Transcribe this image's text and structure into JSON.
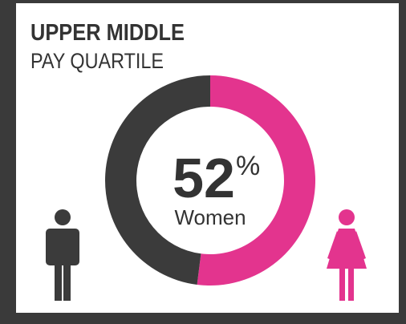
{
  "chart_data": {
    "type": "donut",
    "title": "UPPER MIDDLE",
    "subtitle": "PAY QUARTILE",
    "categories": [
      "Women",
      null
    ],
    "values": [
      52,
      48
    ],
    "unit": "%",
    "colors": [
      "#e3348e",
      "#3b3b3b"
    ]
  }
}
